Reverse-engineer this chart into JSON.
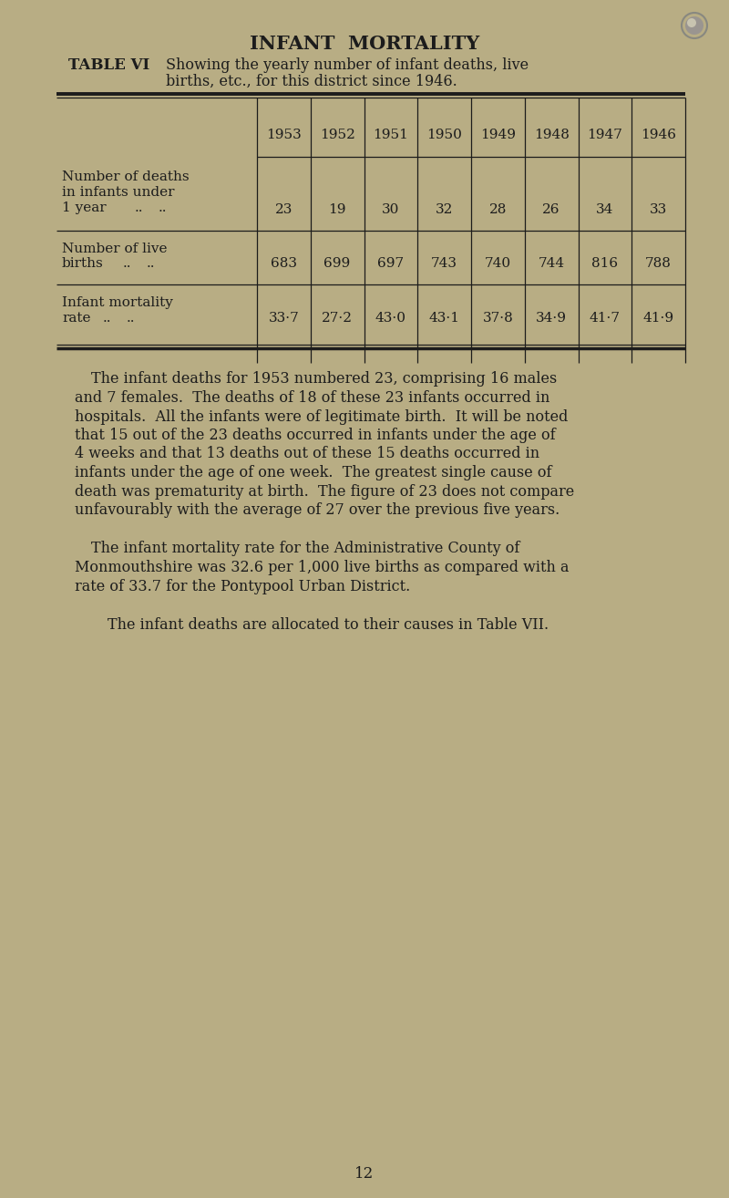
{
  "bg_color": "#b8ad84",
  "title": "INFANT  MORTALITY",
  "subtitle_bold": "TABLE VI",
  "subtitle_text1": "Showing the yearly number of infant deaths, live",
  "subtitle_text2": "births, etc., for this district since 1946.",
  "years": [
    "1953",
    "1952",
    "1951",
    "1950",
    "1949",
    "1948",
    "1947",
    "1946"
  ],
  "row1_label1": "Number of deaths",
  "row1_label2": "in infants under",
  "row1_label3": "1 year",
  "row1_dots": ".. ..",
  "row1_values": [
    "23",
    "19",
    "30",
    "32",
    "28",
    "26",
    "34",
    "33"
  ],
  "row2_label1": "Number of live",
  "row2_label2": "births",
  "row2_dots": ".. ..",
  "row2_values": [
    "683",
    "699",
    "697",
    "743",
    "740",
    "744",
    "816",
    "788"
  ],
  "row3_label1": "Infant mortality",
  "row3_label2": "rate",
  "row3_dots": ".. ..",
  "row3_values": [
    "33·7",
    "27·2",
    "43·0",
    "43·1",
    "37·8",
    "34·9",
    "41·7",
    "41·9"
  ],
  "para1_lines": [
    "The infant deaths for 1953 numbered 23, comprising 16 males",
    "and 7 females.  The deaths of 18 of these 23 infants occurred in",
    "hospitals.  All the infants were of legitimate birth.  It will be noted",
    "that 15 out of the 23 deaths occurred in infants under the age of",
    "4 weeks and that 13 deaths out of these 15 deaths occurred in",
    "infants under the age of one week.  The greatest single cause of",
    "death was prematurity at birth.  The figure of 23 does not compare",
    "unfavourably with the average of 27 over the previous five years."
  ],
  "para2_lines": [
    "The infant mortality rate for the Administrative County of",
    "Monmouthshire was 32.6 per 1,000 live births as compared with a",
    "rate of 33.7 for the Pontypool Urban District."
  ],
  "para3": "The infant deaths are allocated to their causes in Table VII.",
  "page_number": "12",
  "text_color": "#1c1c1c",
  "table_line_color": "#1c1c1c",
  "circle_fill": "#b8ad84",
  "circle_edge": "#888880"
}
